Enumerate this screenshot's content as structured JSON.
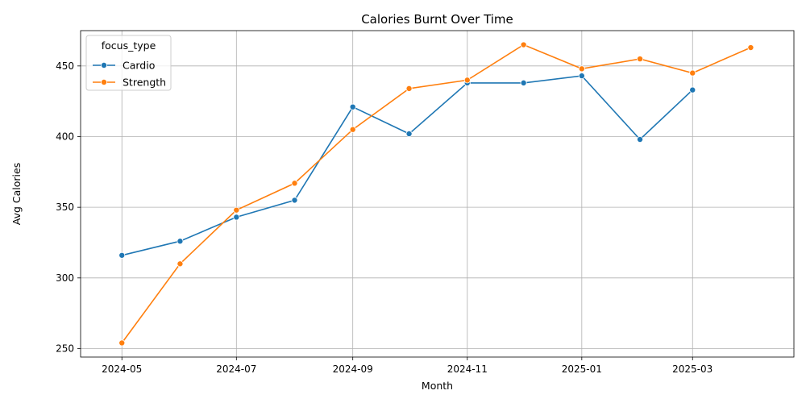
{
  "chart_data": {
    "type": "line",
    "title": "Calories Burnt Over Time",
    "xlabel": "Month",
    "ylabel": "Avg Calories",
    "x": [
      "2024-05-01",
      "2024-06-01",
      "2024-07-01",
      "2024-08-01",
      "2024-09-01",
      "2024-10-01",
      "2024-11-01",
      "2024-12-01",
      "2025-01-01",
      "2025-02-01",
      "2025-03-01",
      "2025-04-01"
    ],
    "x_ticks": [
      "2024-05",
      "2024-07",
      "2024-09",
      "2024-11",
      "2025-01",
      "2025-03"
    ],
    "x_tick_dates": [
      "2024-05-01",
      "2024-07-01",
      "2024-09-01",
      "2024-11-01",
      "2025-01-01",
      "2025-03-01"
    ],
    "xlim": [
      "2024-04-09",
      "2025-04-24"
    ],
    "y_ticks": [
      250,
      300,
      350,
      400,
      450
    ],
    "ylim": [
      244,
      475
    ],
    "grid": true,
    "legend": {
      "title": "focus_type",
      "placement": "top-left"
    },
    "series": [
      {
        "name": "Cardio",
        "color": "#1f77b4",
        "values": [
          316,
          326,
          343,
          355,
          421,
          402,
          438,
          438,
          443,
          398,
          433,
          null
        ]
      },
      {
        "name": "Strength",
        "color": "#ff7f0e",
        "values": [
          254,
          310,
          348,
          367,
          405,
          434,
          440,
          465,
          448,
          455,
          445,
          463
        ]
      }
    ]
  }
}
